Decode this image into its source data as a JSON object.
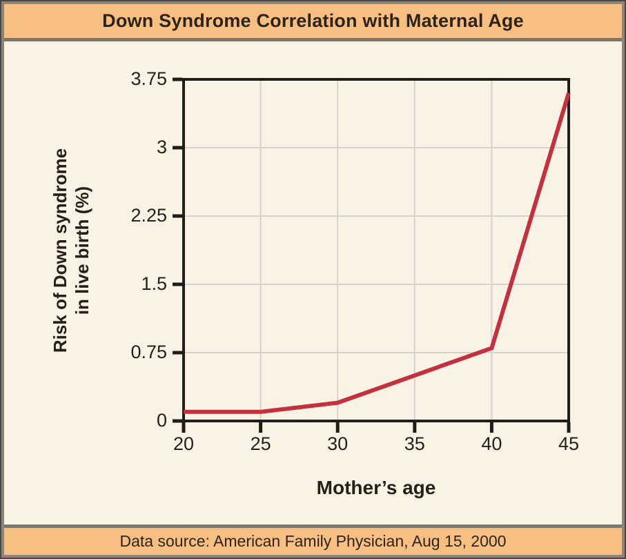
{
  "header": {
    "title": "Down Syndrome Correlation with Maternal Age"
  },
  "footer": {
    "text": "Data source: American Family Physician, Aug 15, 2000"
  },
  "chart_data": {
    "type": "line",
    "title": "Down Syndrome Correlation with Maternal Age",
    "xlabel": "Mother’s age",
    "ylabel": "Risk of Down syndrome in live birth (%)",
    "ylabel_lines": [
      "Risk of Down syndrome",
      "in live birth (%)"
    ],
    "x": [
      20,
      25,
      30,
      40,
      45
    ],
    "y": [
      0.1,
      0.1,
      0.2,
      0.8,
      3.6
    ],
    "xlim": [
      20,
      45
    ],
    "ylim": [
      0,
      3.75
    ],
    "xticks": [
      20,
      25,
      30,
      35,
      40,
      45
    ],
    "xtick_labels": [
      "20",
      "25",
      "30",
      "35",
      "40",
      "45"
    ],
    "yticks": [
      0,
      0.75,
      1.5,
      2.25,
      3,
      3.75
    ],
    "ytick_labels": [
      "0",
      "0.75",
      "1.5",
      "2.25",
      "3",
      "3.75"
    ],
    "grid": true,
    "legend_position": "none",
    "source_note": "Data source: American Family Physician, Aug 15, 2000"
  },
  "colors": {
    "band": "#f8bf82",
    "background": "#faf3e5",
    "frame": "#8b857d",
    "separator": "#7e776d",
    "axis": "#201d18",
    "gridline": "#d7d3ca",
    "text": "#262019",
    "line": "#c3303e"
  }
}
